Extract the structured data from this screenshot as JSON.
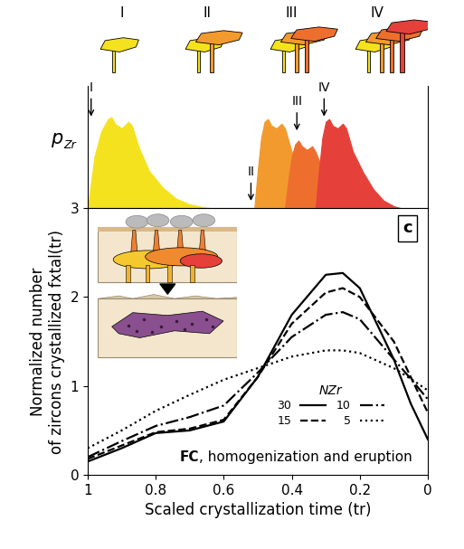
{
  "schematic": {
    "labels": [
      "I",
      "II",
      "III",
      "IV"
    ],
    "colors": [
      "#f5e21f",
      "#f29a2e",
      "#ee6f2d",
      "#e5403a"
    ]
  },
  "chart_data": [
    {
      "type": "area",
      "y_label": {
        "text": "p",
        "subscript": "Zr"
      },
      "xlim": [
        1,
        0
      ],
      "ylim": [
        0,
        1.3
      ],
      "tick_labels": false,
      "series": [
        {
          "color": "#f5e21f",
          "x": [
            1.0,
            0.98,
            0.96,
            0.94,
            0.93,
            0.92,
            0.9,
            0.88,
            0.87,
            0.85,
            0.82,
            0.78,
            0.74,
            0.7,
            0.66,
            0.64
          ],
          "values": [
            0,
            0.55,
            0.82,
            0.95,
            0.97,
            0.9,
            0.85,
            0.92,
            0.88,
            0.65,
            0.4,
            0.22,
            0.1,
            0.04,
            0.01,
            0
          ]
        },
        {
          "color": "#f29a2e",
          "x": [
            0.51,
            0.5,
            0.49,
            0.48,
            0.47,
            0.46,
            0.445,
            0.43,
            0.42,
            0.4,
            0.37,
            0.34,
            0.31,
            0.28,
            0.26
          ],
          "values": [
            0,
            0.4,
            0.75,
            0.92,
            0.95,
            0.88,
            0.85,
            0.9,
            0.85,
            0.6,
            0.38,
            0.2,
            0.08,
            0.02,
            0
          ]
        },
        {
          "color": "#ee6f2d",
          "x": [
            0.42,
            0.41,
            0.4,
            0.39,
            0.38,
            0.37,
            0.355,
            0.34,
            0.33,
            0.31,
            0.28,
            0.25,
            0.22,
            0.19,
            0.17
          ],
          "values": [
            0,
            0.3,
            0.55,
            0.68,
            0.72,
            0.66,
            0.62,
            0.66,
            0.6,
            0.42,
            0.27,
            0.14,
            0.06,
            0.02,
            0
          ]
        },
        {
          "color": "#e5403a",
          "x": [
            0.33,
            0.32,
            0.31,
            0.3,
            0.29,
            0.28,
            0.265,
            0.25,
            0.24,
            0.22,
            0.19,
            0.16,
            0.13,
            0.1,
            0.08
          ],
          "values": [
            0,
            0.4,
            0.75,
            0.92,
            0.95,
            0.88,
            0.85,
            0.9,
            0.85,
            0.6,
            0.38,
            0.2,
            0.08,
            0.02,
            0
          ]
        }
      ],
      "annotations": [
        {
          "text": "I",
          "x": 0.99,
          "y": 0.95
        },
        {
          "text": "II",
          "x": 0.52,
          "y": 0.05
        },
        {
          "text": "III",
          "x": 0.385,
          "y": 0.8
        },
        {
          "text": "IV",
          "x": 0.305,
          "y": 0.95
        }
      ]
    },
    {
      "type": "line",
      "panel_label": "c",
      "xlabel": "Scaled crystallization time (tr)",
      "ylabel": "Normalized number\nof zircons crystallized fxtal(tr)",
      "xlim": [
        1,
        0
      ],
      "ylim": [
        0,
        3
      ],
      "xticks": [
        1,
        0.8,
        0.6,
        0.4,
        0.2,
        0
      ],
      "yticks": [
        0,
        1,
        2,
        3
      ],
      "legend": "lower center",
      "legend_title": "NZr",
      "x": [
        1,
        0.9,
        0.8,
        0.7,
        0.6,
        0.5,
        0.4,
        0.3,
        0.25,
        0.2,
        0.1,
        0.05,
        0
      ],
      "series": [
        {
          "name": "30",
          "color": "#000000",
          "line_style": "solid",
          "values": [
            0.15,
            0.3,
            0.47,
            0.5,
            0.6,
            1.1,
            1.8,
            2.25,
            2.27,
            2.1,
            1.3,
            0.8,
            0.4
          ]
        },
        {
          "name": "15",
          "color": "#000000",
          "line_style": "dashed",
          "values": [
            0.18,
            0.33,
            0.48,
            0.52,
            0.62,
            1.1,
            1.7,
            2.05,
            2.1,
            2.0,
            1.5,
            1.1,
            0.7
          ]
        },
        {
          "name": "10",
          "color": "#000000",
          "line_style": "dashdot",
          "values": [
            0.2,
            0.38,
            0.55,
            0.65,
            0.78,
            1.15,
            1.55,
            1.8,
            1.83,
            1.75,
            1.3,
            1.08,
            0.85
          ]
        },
        {
          "name": "5",
          "color": "#000000",
          "line_style": "dotted",
          "values": [
            0.3,
            0.5,
            0.72,
            0.9,
            1.07,
            1.2,
            1.33,
            1.4,
            1.4,
            1.37,
            1.2,
            1.08,
            0.95
          ]
        }
      ],
      "annotation": {
        "bold": "FC",
        "text": ", homogenization and eruption"
      }
    }
  ]
}
